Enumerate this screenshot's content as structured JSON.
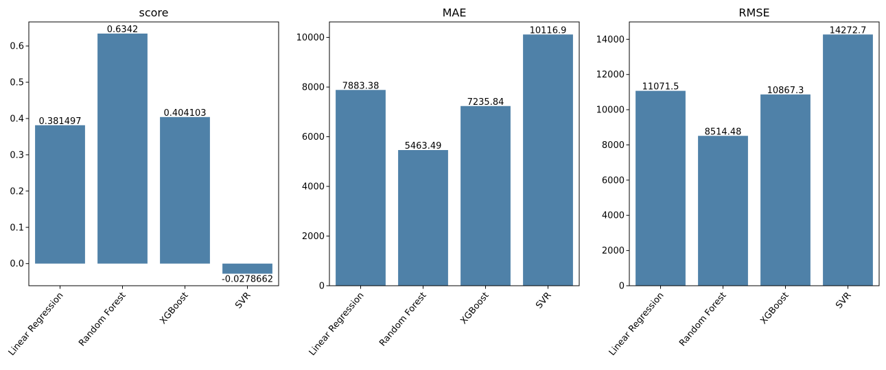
{
  "chart_data": [
    {
      "type": "bar",
      "title": "score",
      "xlabel": "",
      "ylabel": "",
      "categories": [
        "Linear Regression",
        "Random Forest",
        "XGBoost",
        "SVR"
      ],
      "values": [
        0.381497,
        0.6342,
        0.404103,
        -0.0278662
      ],
      "data_labels": [
        "0.381497",
        "0.6342",
        "0.404103",
        "-0.0278662"
      ],
      "ylim": [
        -0.061,
        0.6663
      ],
      "yticks": [
        0.0,
        0.1,
        0.2,
        0.3,
        0.4,
        0.5,
        0.6
      ],
      "ytick_labels": [
        "0.0",
        "0.1",
        "0.2",
        "0.3",
        "0.4",
        "0.5",
        "0.6"
      ],
      "grid": false,
      "legend": "none"
    },
    {
      "type": "bar",
      "title": "MAE",
      "xlabel": "",
      "ylabel": "",
      "categories": [
        "Linear Regression",
        "Random Forest",
        "XGBoost",
        "SVR"
      ],
      "values": [
        7883.38,
        5463.49,
        7235.84,
        10116.9
      ],
      "data_labels": [
        "7883.38",
        "5463.49",
        "7235.84",
        "10116.9"
      ],
      "ylim": [
        0,
        10622.7
      ],
      "yticks": [
        0,
        2000,
        4000,
        6000,
        8000,
        10000
      ],
      "ytick_labels": [
        "0",
        "2000",
        "4000",
        "6000",
        "8000",
        "10000"
      ],
      "grid": false,
      "legend": "none"
    },
    {
      "type": "bar",
      "title": "RMSE",
      "xlabel": "",
      "ylabel": "",
      "categories": [
        "Linear Regression",
        "Random Forest",
        "XGBoost",
        "SVR"
      ],
      "values": [
        11071.5,
        8514.48,
        10867.3,
        14272.7
      ],
      "data_labels": [
        "11071.5",
        "8514.48",
        "10867.3",
        "14272.7"
      ],
      "ylim": [
        0,
        14986.3
      ],
      "yticks": [
        0,
        2000,
        4000,
        6000,
        8000,
        10000,
        12000,
        14000
      ],
      "ytick_labels": [
        "0",
        "2000",
        "4000",
        "6000",
        "8000",
        "10000",
        "12000",
        "14000"
      ],
      "grid": false,
      "legend": "none"
    }
  ],
  "colors": {
    "bar": "#4f81a8",
    "axis": "#000000",
    "text": "#000000",
    "background": "#ffffff"
  }
}
